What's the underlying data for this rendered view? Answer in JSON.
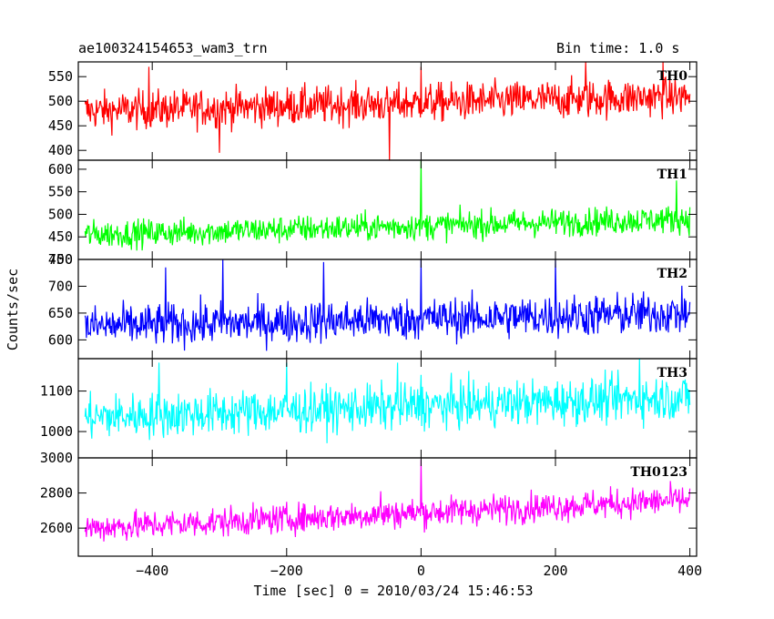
{
  "chart_data": {
    "type": "line",
    "title": "ae100324154653_wam3_trn",
    "subtitle": "Bin time: 1.0 s",
    "xlabel": "Time [sec] 0 = 2010/03/24 15:46:53",
    "ylabel": "Counts/sec",
    "xlim": [
      -510,
      410
    ],
    "xticks": [
      -400,
      -200,
      0,
      200,
      400
    ],
    "panels": [
      {
        "name": "TH0",
        "color": "#ff0000",
        "ylim": [
          380,
          580
        ],
        "yticks": [
          400,
          450,
          500,
          550
        ],
        "base_start": 480,
        "base_end": 510,
        "noise": 28,
        "spike_at_0": 570,
        "dips": [
          [
            -47,
            380
          ],
          [
            -300,
            395
          ]
        ],
        "peaks": [
          [
            -405,
            570
          ],
          [
            245,
            580
          ],
          [
            360,
            580
          ]
        ]
      },
      {
        "name": "TH1",
        "color": "#00ff00",
        "ylim": [
          400,
          620
        ],
        "yticks": [
          400,
          450,
          500,
          550,
          600
        ],
        "base_start": 455,
        "base_end": 490,
        "noise": 22,
        "spike_at_0": 620,
        "dips": [],
        "peaks": [
          [
            380,
            575
          ]
        ]
      },
      {
        "name": "TH2",
        "color": "#0000ff",
        "ylim": [
          565,
          750
        ],
        "yticks": [
          600,
          650,
          700,
          750
        ],
        "base_start": 625,
        "base_end": 650,
        "noise": 28,
        "spike_at_0": 750,
        "dips": [],
        "peaks": [
          [
            -295,
            750
          ],
          [
            -145,
            745
          ],
          [
            200,
            750
          ],
          [
            -380,
            735
          ]
        ]
      },
      {
        "name": "TH3",
        "color": "#00ffff",
        "ylim": [
          935,
          1180
        ],
        "yticks": [
          1000,
          1100
        ],
        "base_start": 1035,
        "base_end": 1085,
        "noise": 40,
        "spike_at_0": 1140,
        "dips": [],
        "peaks": [
          [
            -390,
            1170
          ],
          [
            -200,
            1170
          ],
          [
            -35,
            1170
          ],
          [
            325,
            1180
          ]
        ]
      },
      {
        "name": "TH0123",
        "color": "#ff00ff",
        "ylim": [
          2440,
          3000
        ],
        "yticks": [
          2600,
          2800,
          3000
        ],
        "base_start": 2600,
        "base_end": 2760,
        "noise": 60,
        "spike_at_0": 2990,
        "dips": [],
        "peaks": [
          [
            -60,
            2810
          ]
        ]
      }
    ]
  }
}
